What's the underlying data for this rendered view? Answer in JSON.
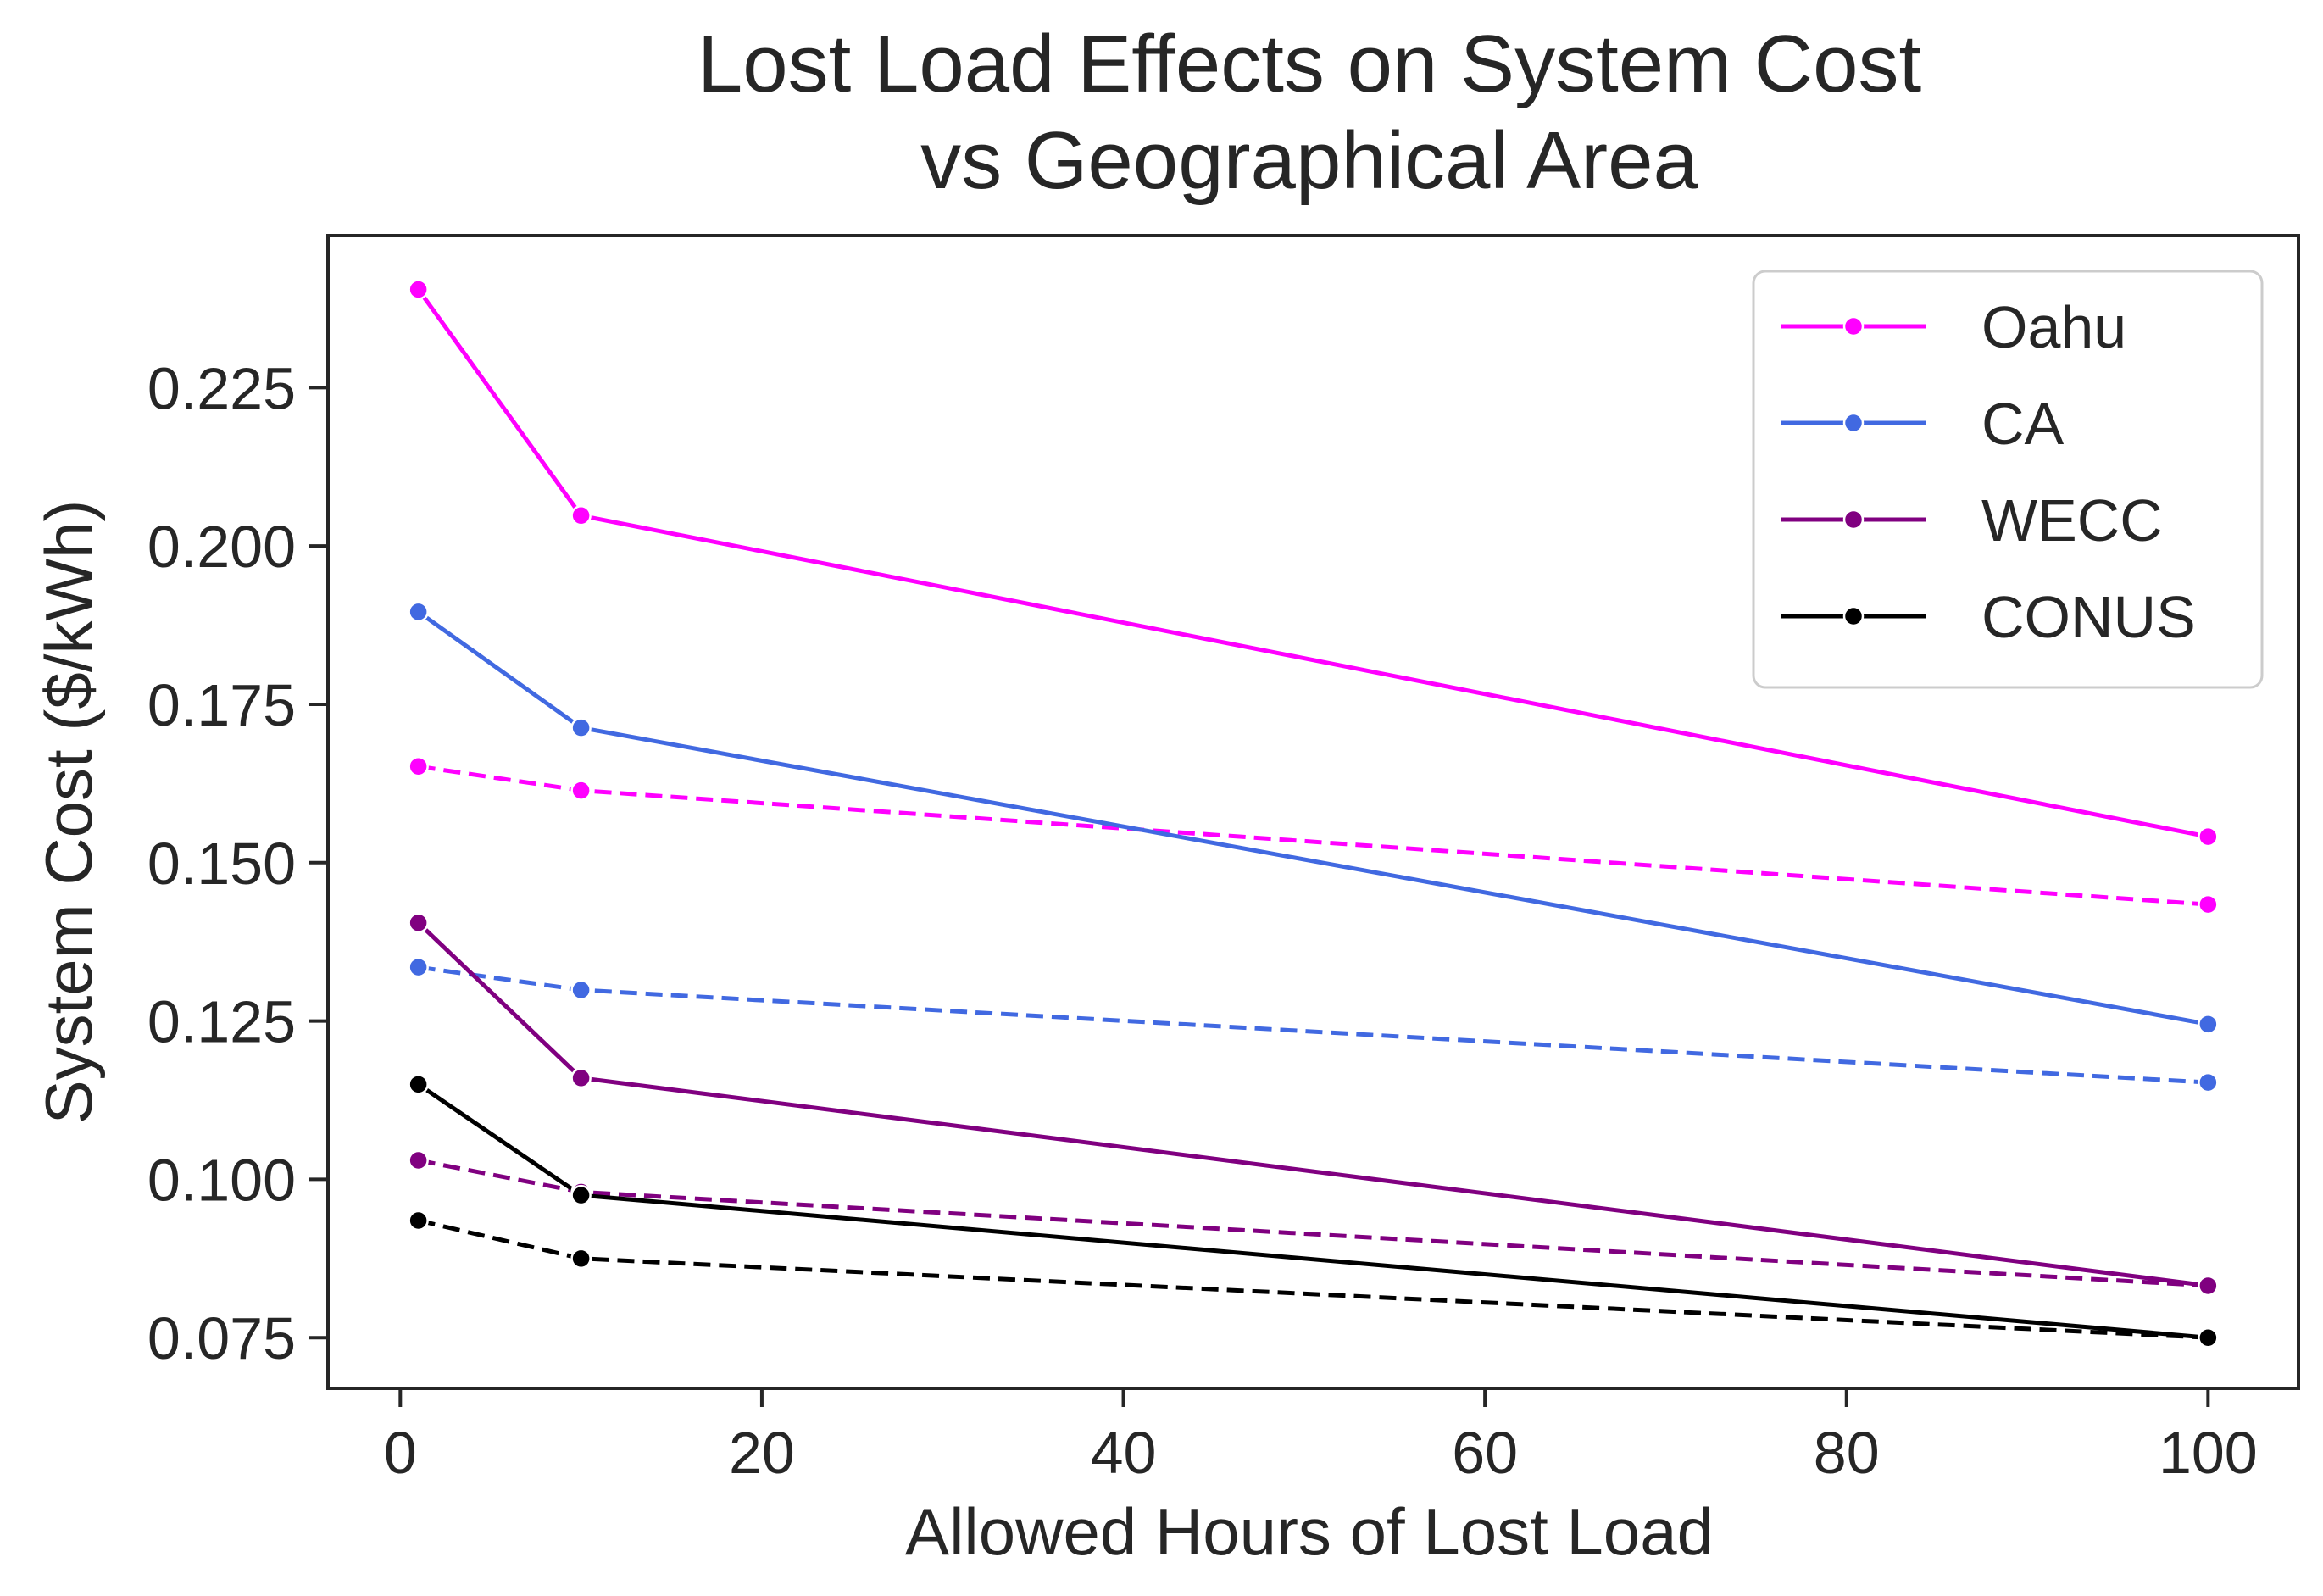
{
  "chart_data": {
    "type": "line",
    "title": [
      "Lost Load Effects on System Cost",
      "vs Geographical Area"
    ],
    "xlabel": "Allowed Hours of Lost Load",
    "ylabel": "System Cost ($/kWh)",
    "xlim": [
      -4,
      105
    ],
    "ylim": [
      0.067,
      0.249
    ],
    "xticks": [
      0,
      20,
      40,
      60,
      80,
      100
    ],
    "xtick_labels": [
      "0",
      "20",
      "40",
      "60",
      "80",
      "100"
    ],
    "yticks": [
      0.075,
      0.1,
      0.125,
      0.15,
      0.175,
      0.2,
      0.225
    ],
    "ytick_labels": [
      "0.075",
      "0.100",
      "0.125",
      "0.150",
      "0.175",
      "0.200",
      "0.225"
    ],
    "x": [
      1,
      10,
      100
    ],
    "legend_position": "top-right",
    "legend": [
      {
        "name": "Oahu",
        "color": "#ff00ff"
      },
      {
        "name": "CA",
        "color": "#4169e1"
      },
      {
        "name": "WECC",
        "color": "#800080"
      },
      {
        "name": "CONUS",
        "color": "#000000"
      }
    ],
    "series": [
      {
        "name": "Oahu",
        "style": "solid",
        "color": "#ff00ff",
        "values": [
          0.2405,
          0.2048,
          0.1541
        ]
      },
      {
        "name": "Oahu",
        "style": "dashed",
        "color": "#ff00ff",
        "values": [
          0.1652,
          0.1614,
          0.1434
        ]
      },
      {
        "name": "CA",
        "style": "solid",
        "color": "#4169e1",
        "values": [
          0.1896,
          0.1713,
          0.1245
        ]
      },
      {
        "name": "CA",
        "style": "dashed",
        "color": "#4169e1",
        "values": [
          0.1335,
          0.1299,
          0.1153
        ]
      },
      {
        "name": "WECC",
        "style": "solid",
        "color": "#800080",
        "values": [
          0.1405,
          0.116,
          0.0832
        ]
      },
      {
        "name": "WECC",
        "style": "dashed",
        "color": "#800080",
        "values": [
          0.103,
          0.098,
          0.0832
        ]
      },
      {
        "name": "CONUS",
        "style": "solid",
        "color": "#000000",
        "values": [
          0.115,
          0.0975,
          0.075
        ]
      },
      {
        "name": "CONUS",
        "style": "dashed",
        "color": "#000000",
        "values": [
          0.0935,
          0.0875,
          0.075
        ]
      }
    ]
  }
}
